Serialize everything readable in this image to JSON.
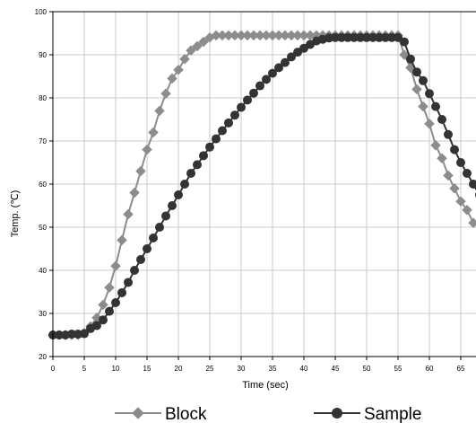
{
  "chart_data": {
    "type": "line",
    "title": "",
    "xlabel": "Time (sec)",
    "ylabel": "Temp. (℃)",
    "xlim": [
      0,
      68
    ],
    "ylim": [
      20,
      100
    ],
    "x_ticks": [
      "0",
      "5",
      "10",
      "15",
      "20",
      "25",
      "30",
      "35",
      "40",
      "45",
      "50",
      "55",
      "60",
      "65"
    ],
    "y_ticks": [
      "20",
      "30",
      "40",
      "50",
      "60",
      "70",
      "80",
      "90",
      "100"
    ],
    "grid": true,
    "legend": "bottom",
    "series": [
      {
        "name": "Block",
        "color": "#8c8c8c",
        "marker": "diamond",
        "x": [
          0,
          1,
          2,
          3,
          4,
          5,
          6,
          7,
          8,
          9,
          10,
          11,
          12,
          13,
          14,
          15,
          16,
          17,
          18,
          19,
          20,
          21,
          22,
          23,
          24,
          25,
          26,
          27,
          28,
          29,
          30,
          31,
          32,
          33,
          34,
          35,
          36,
          37,
          38,
          39,
          40,
          41,
          42,
          43,
          44,
          45,
          46,
          47,
          48,
          49,
          50,
          51,
          52,
          53,
          54,
          55,
          56,
          57,
          58,
          59,
          60,
          61,
          62,
          63,
          64,
          65,
          66,
          67
        ],
        "y": [
          25,
          25,
          25,
          25,
          25,
          25.5,
          27,
          29,
          32,
          36,
          41,
          47,
          53,
          58,
          63,
          68,
          72,
          77,
          81,
          84.5,
          86.5,
          89,
          91,
          92,
          93,
          94,
          94.5,
          94.5,
          94.5,
          94.5,
          94.5,
          94.5,
          94.5,
          94.5,
          94.5,
          94.5,
          94.5,
          94.5,
          94.5,
          94.5,
          94.5,
          94.5,
          94.5,
          94.5,
          94.5,
          94.5,
          94.5,
          94.5,
          94.5,
          94.5,
          94.5,
          94.5,
          94.5,
          94.5,
          94.5,
          94.5,
          90,
          87,
          82,
          78,
          74,
          69,
          66,
          62,
          59,
          56,
          54,
          51
        ]
      },
      {
        "name": "Sample",
        "color": "#333333",
        "marker": "circle",
        "x": [
          0,
          1,
          2,
          3,
          4,
          5,
          6,
          7,
          8,
          9,
          10,
          11,
          12,
          13,
          14,
          15,
          16,
          17,
          18,
          19,
          20,
          21,
          22,
          23,
          24,
          25,
          26,
          27,
          28,
          29,
          30,
          31,
          32,
          33,
          34,
          35,
          36,
          37,
          38,
          39,
          40,
          41,
          42,
          43,
          44,
          45,
          46,
          47,
          48,
          49,
          50,
          51,
          52,
          53,
          54,
          55,
          56,
          57,
          58,
          59,
          60,
          61,
          62,
          63,
          64,
          65,
          66,
          67,
          68
        ],
        "y": [
          25,
          25,
          25,
          25.2,
          25.2,
          25.3,
          26.5,
          27.2,
          28.5,
          30.5,
          32.5,
          34.8,
          37.2,
          40,
          42.5,
          45,
          47.5,
          50,
          52.6,
          55,
          57.5,
          60,
          62.5,
          64.5,
          66.6,
          68.6,
          70.5,
          72.4,
          74.2,
          76,
          77.8,
          79.5,
          81.1,
          82.8,
          84.3,
          85.7,
          87,
          88.2,
          89.5,
          90.6,
          91.5,
          92.4,
          93.2,
          93.6,
          93.9,
          94,
          94,
          94,
          94,
          94,
          94,
          94,
          94,
          94,
          94,
          94,
          93,
          89,
          86,
          84,
          81,
          78,
          75,
          71.5,
          68,
          65,
          62.5,
          60,
          57.5
        ]
      }
    ]
  }
}
